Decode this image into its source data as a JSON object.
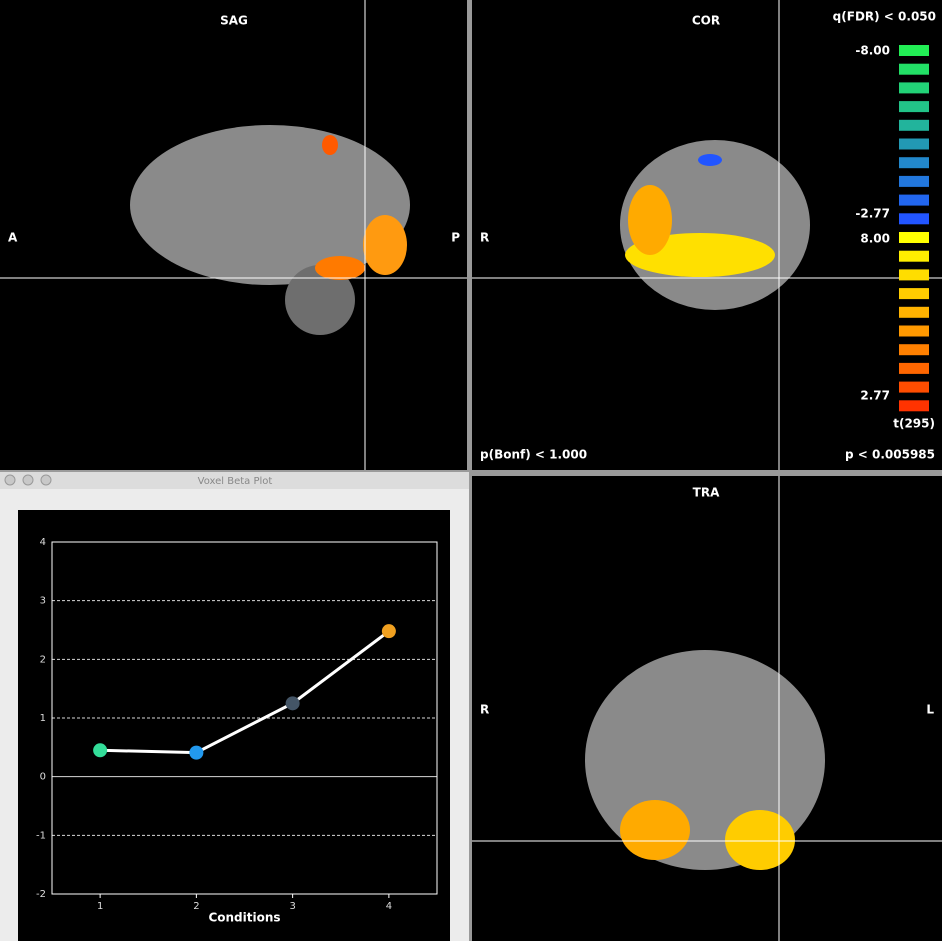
{
  "views": {
    "sag": {
      "title": "SAG",
      "left": "A",
      "right": "P"
    },
    "cor": {
      "title": "COR",
      "left": "R"
    },
    "tra": {
      "title": "TRA",
      "left": "R",
      "right": "L"
    }
  },
  "overlay": {
    "threshold": "q(FDR) < 0.050",
    "neg_max": "-8.00",
    "neg_min": "-2.77",
    "pos_max": "8.00",
    "pos_min": "2.77",
    "stat": "t(295)",
    "bonf": "p(Bonf) < 1.000",
    "p": "p < 0.005985",
    "neg_colors": [
      "#22ee55",
      "#22e066",
      "#22d277",
      "#22c488",
      "#22b49c",
      "#2299b4",
      "#2288cc",
      "#2277dd",
      "#2266ee",
      "#2255ff"
    ],
    "pos_colors": [
      "#ffff00",
      "#ffee00",
      "#ffdd00",
      "#ffcc00",
      "#ffb300",
      "#ff9900",
      "#ff8000",
      "#ff6600",
      "#ff4d00",
      "#ff3300"
    ]
  },
  "window": {
    "title": "Voxel Beta Plot"
  },
  "chart_data": {
    "type": "line",
    "x": [
      1,
      2,
      3,
      4
    ],
    "values": [
      0.45,
      0.41,
      1.25,
      2.48
    ],
    "point_colors": [
      "#33dd99",
      "#2299ee",
      "#445566",
      "#f0a020"
    ],
    "color": "#ffffff",
    "xlabel": "Conditions",
    "xlim": [
      0.5,
      4.5
    ],
    "xticks": [
      1,
      2,
      3,
      4
    ],
    "ylim": [
      -2,
      4
    ],
    "yticks": [
      -2,
      -1,
      0,
      1,
      2,
      3,
      4
    ],
    "grid": true
  }
}
